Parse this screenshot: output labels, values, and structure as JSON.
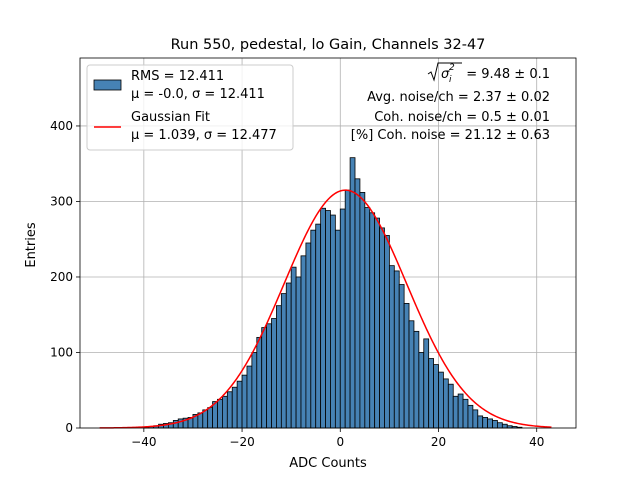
{
  "chart_data": {
    "type": "bar",
    "title": "Run 550, pedestal, lo Gain, Channels 32-47",
    "xlabel": "ADC Counts",
    "ylabel": "Entries",
    "xlim": [
      -53,
      48
    ],
    "ylim": [
      0,
      490
    ],
    "xticks": [
      -40,
      -20,
      0,
      20,
      40
    ],
    "xtick_labels": [
      "−40",
      "−20",
      "0",
      "20",
      "40"
    ],
    "yticks": [
      0,
      100,
      200,
      300,
      400
    ],
    "ytick_labels": [
      "0",
      "100",
      "200",
      "300",
      "400"
    ],
    "grid": true,
    "legend_position": "upper-left",
    "bin_start": -49,
    "bin_width": 1,
    "values": [
      0,
      0,
      0,
      0,
      0,
      0,
      0,
      0,
      0,
      1,
      2,
      3,
      5,
      6,
      7,
      10,
      12,
      13,
      14,
      18,
      20,
      24,
      27,
      35,
      38,
      42,
      48,
      54,
      62,
      70,
      82,
      100,
      120,
      133,
      138,
      145,
      162,
      178,
      192,
      213,
      200,
      228,
      245,
      262,
      270,
      291,
      288,
      282,
      262,
      290,
      315,
      358,
      330,
      312,
      292,
      285,
      278,
      265,
      255,
      215,
      208,
      190,
      165,
      142,
      128,
      100,
      118,
      92,
      84,
      74,
      65,
      58,
      42,
      45,
      38,
      30,
      24,
      16,
      14,
      12,
      10,
      7,
      5,
      3,
      2,
      1,
      0,
      0,
      0,
      0,
      0,
      0,
      0
    ],
    "series": [
      {
        "name": "RMS = 12.411",
        "name_line2": "μ = -0.0, σ = 12.411",
        "kind": "histogram",
        "color": "#4682b4",
        "edgecolor": "#000000"
      },
      {
        "name": "Gaussian Fit",
        "name_line2": "μ = 1.039, σ = 12.477",
        "kind": "line",
        "color": "#ff0000",
        "mu": 1.039,
        "sigma": 12.477,
        "amplitude": 315,
        "x_range": [
          -49,
          43
        ]
      }
    ],
    "annotations": {
      "sqrt_value": " = 9.48 ± 0.1",
      "avg_noise": "Avg. noise/ch = 2.37 ± 0.02",
      "coh_noise": "Coh. noise/ch = 0.5 ± 0.01",
      "coh_pct": "[%] Coh. noise = 21.12 ± 0.63"
    }
  }
}
